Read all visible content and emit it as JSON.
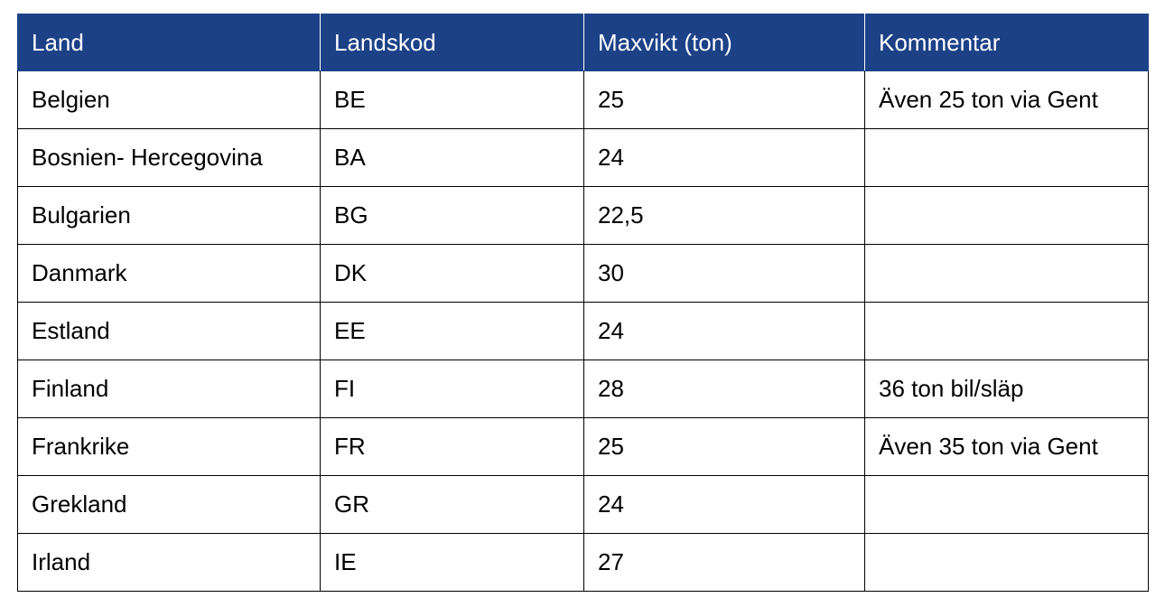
{
  "colors": {
    "header_background": "#1c4187",
    "header_text": "#ffffff",
    "cell_text": "#000000",
    "border": "#000000"
  },
  "table": {
    "headers": [
      "Land",
      "Landskod",
      "Maxvikt (ton)",
      "Kommentar"
    ],
    "rows": [
      [
        "Belgien",
        "BE",
        "25",
        "Även 25 ton via Gent"
      ],
      [
        "Bosnien- Hercegovina",
        "BA",
        "24",
        ""
      ],
      [
        "Bulgarien",
        "BG",
        "22,5",
        ""
      ],
      [
        "Danmark",
        "DK",
        "30",
        ""
      ],
      [
        "Estland",
        "EE",
        "24",
        ""
      ],
      [
        "Finland",
        "FI",
        "28",
        "36 ton bil/släp"
      ],
      [
        "Frankrike",
        "FR",
        "25",
        "Även 35 ton via Gent"
      ],
      [
        "Grekland",
        "GR",
        "24",
        ""
      ],
      [
        "Irland",
        "IE",
        "27",
        ""
      ]
    ]
  }
}
